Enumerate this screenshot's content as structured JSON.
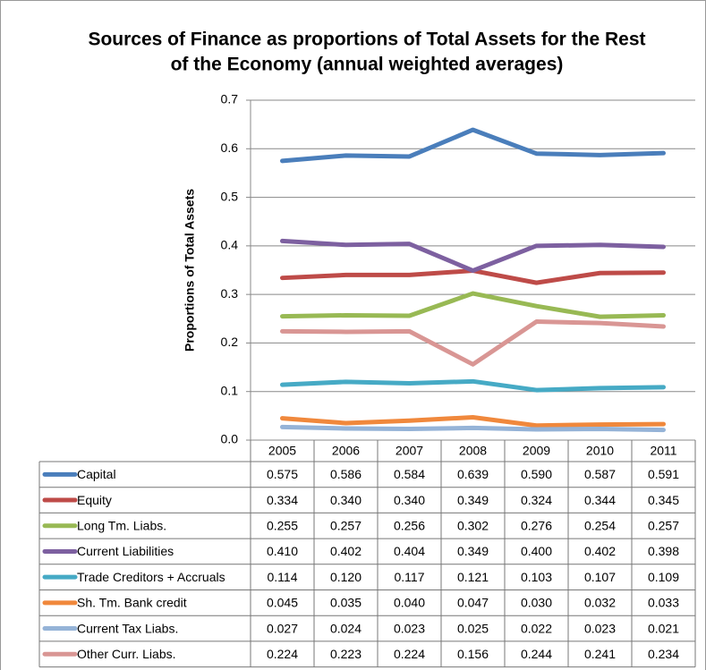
{
  "chart_data": {
    "type": "line",
    "title": [
      "Sources of Finance as proportions of Total Assets for the Rest",
      "of the Economy (annual weighted averages)"
    ],
    "y_label": "Proportions of Total Assets",
    "categories": [
      "2005",
      "2006",
      "2007",
      "2008",
      "2009",
      "2010",
      "2011"
    ],
    "ylim": [
      0,
      0.7
    ],
    "yticks": [
      {
        "value": 0,
        "label": "0.0"
      },
      {
        "value": 0.1,
        "label": "0.1"
      },
      {
        "value": 0.2,
        "label": "0.2"
      },
      {
        "value": 0.3,
        "label": "0.3"
      },
      {
        "value": 0.4,
        "label": "0.4"
      },
      {
        "value": 0.5,
        "label": "0.5"
      },
      {
        "value": 0.6,
        "label": "0.6"
      },
      {
        "value": 0.7,
        "label": "0.7"
      }
    ],
    "grid": true,
    "series": [
      {
        "name": "Capital",
        "color": "#4a7ebb",
        "values": [
          0.575,
          0.586,
          0.584,
          0.639,
          0.59,
          0.587,
          0.591
        ],
        "value_labels": [
          "0.575",
          "0.586",
          "0.584",
          "0.639",
          "0.590",
          "0.587",
          "0.591"
        ]
      },
      {
        "name": "Equity",
        "color": "#be4b48",
        "values": [
          0.334,
          0.34,
          0.34,
          0.349,
          0.324,
          0.344,
          0.345
        ],
        "value_labels": [
          "0.334",
          "0.340",
          "0.340",
          "0.349",
          "0.324",
          "0.344",
          "0.345"
        ]
      },
      {
        "name": "Long Tm. Liabs.",
        "color": "#98b954",
        "values": [
          0.255,
          0.257,
          0.256,
          0.302,
          0.276,
          0.254,
          0.257
        ],
        "value_labels": [
          "0.255",
          "0.257",
          "0.256",
          "0.302",
          "0.276",
          "0.254",
          "0.257"
        ]
      },
      {
        "name": "Current Liabilities",
        "color": "#7d60a0",
        "values": [
          0.41,
          0.402,
          0.404,
          0.349,
          0.4,
          0.402,
          0.398
        ],
        "value_labels": [
          "0.410",
          "0.402",
          "0.404",
          "0.349",
          "0.400",
          "0.402",
          "0.398"
        ]
      },
      {
        "name": "Trade Creditors + Accruals",
        "color": "#46aac5",
        "values": [
          0.114,
          0.12,
          0.117,
          0.121,
          0.103,
          0.107,
          0.109
        ],
        "value_labels": [
          "0.114",
          "0.120",
          "0.117",
          "0.121",
          "0.103",
          "0.107",
          "0.109"
        ]
      },
      {
        "name": "Sh. Tm. Bank credit",
        "color": "#f0883c",
        "values": [
          0.045,
          0.035,
          0.04,
          0.047,
          0.03,
          0.032,
          0.033
        ],
        "value_labels": [
          "0.045",
          "0.035",
          "0.040",
          "0.047",
          "0.030",
          "0.032",
          "0.033"
        ]
      },
      {
        "name": "Current Tax Liabs.",
        "color": "#95b3d7",
        "values": [
          0.027,
          0.024,
          0.023,
          0.025,
          0.022,
          0.023,
          0.021
        ],
        "value_labels": [
          "0.027",
          "0.024",
          "0.023",
          "0.025",
          "0.022",
          "0.023",
          "0.021"
        ]
      },
      {
        "name": "Other Curr. Liabs.",
        "color": "#d99694",
        "values": [
          0.224,
          0.223,
          0.224,
          0.156,
          0.244,
          0.241,
          0.234
        ],
        "value_labels": [
          "0.224",
          "0.223",
          "0.224",
          "0.156",
          "0.244",
          "0.241",
          "0.234"
        ]
      }
    ]
  }
}
